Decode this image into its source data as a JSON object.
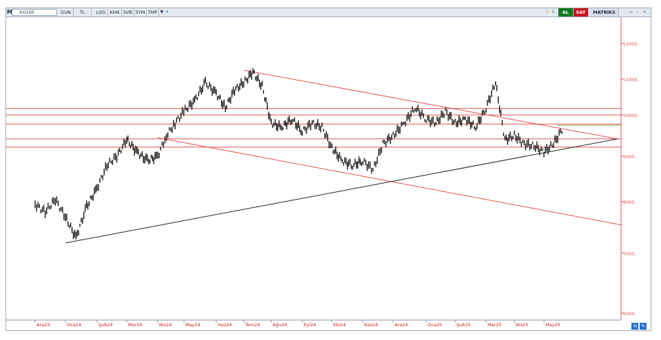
{
  "toolbar": {
    "menu_letter": "M",
    "symbol": "XU100",
    "buttons": [
      "GUN",
      "TL",
      "LOG",
      "KHN",
      "SVB",
      "SYM",
      "TMP"
    ],
    "right_icons": [
      "lightning-icon",
      "refresh-icon"
    ],
    "buy_label": "AL",
    "sell_label": "SAT",
    "matriks_label": "MATRİKS",
    "colors": {
      "buy": "#0d7a1f",
      "sell": "#c8161c",
      "matriks": "#d7dde6"
    }
  },
  "chart_data": {
    "type": "candlestick",
    "instrument": "XU100",
    "period": "daily",
    "x_ticks": [
      "Ara23",
      "Oca24",
      "Şub24",
      "Mar24",
      "Nis24",
      "May24",
      "Haz24",
      "Tem24",
      "Ağu24",
      "Eyl24",
      "Eki24",
      "Kas24",
      "Ara24",
      "Oca25",
      "Şub25",
      "Mar25",
      "Nis25",
      "May25"
    ],
    "y_ticks": [
      12000,
      11000,
      10000,
      9000,
      8000,
      7000,
      6000
    ],
    "y_tick_labels": [
      "12000.",
      "11000.",
      "10000.",
      "9000.",
      "8000.",
      "7000.",
      "6000."
    ],
    "ylim": [
      5900,
      12800
    ],
    "series": [
      {
        "values": [
          {
            "date": "Ara23",
            "value": 7950
          },
          {
            "date": "Ara23",
            "value": 7800
          },
          {
            "date": "Ara23",
            "value": 8050
          },
          {
            "date": "Oca24",
            "value": 7700
          },
          {
            "date": "Oca24",
            "value": 7300
          },
          {
            "date": "Oca24",
            "value": 7900
          },
          {
            "date": "Şub24",
            "value": 8300
          },
          {
            "date": "Şub24",
            "value": 8800
          },
          {
            "date": "Şub24",
            "value": 9000
          },
          {
            "date": "Mar24",
            "value": 9400
          },
          {
            "date": "Mar24",
            "value": 9100
          },
          {
            "date": "Mar24",
            "value": 8900
          },
          {
            "date": "Nis24",
            "value": 9000
          },
          {
            "date": "Nis24",
            "value": 9500
          },
          {
            "date": "Nis24",
            "value": 9800
          },
          {
            "date": "May24",
            "value": 10100
          },
          {
            "date": "May24",
            "value": 10400
          },
          {
            "date": "May24",
            "value": 10900
          },
          {
            "date": "Haz24",
            "value": 10600
          },
          {
            "date": "Haz24",
            "value": 10200
          },
          {
            "date": "Haz24",
            "value": 10700
          },
          {
            "date": "Tem24",
            "value": 10900
          },
          {
            "date": "Tem24",
            "value": 11200
          },
          {
            "date": "Tem24",
            "value": 10800
          },
          {
            "date": "Ağu24",
            "value": 9800
          },
          {
            "date": "Ağu24",
            "value": 9700
          },
          {
            "date": "Ağu24",
            "value": 9900
          },
          {
            "date": "Eyl24",
            "value": 9600
          },
          {
            "date": "Eyl24",
            "value": 9800
          },
          {
            "date": "Eyl24",
            "value": 9700
          },
          {
            "date": "Eki24",
            "value": 9200
          },
          {
            "date": "Eki24",
            "value": 8900
          },
          {
            "date": "Eki24",
            "value": 8800
          },
          {
            "date": "Kas24",
            "value": 8900
          },
          {
            "date": "Kas24",
            "value": 8700
          },
          {
            "date": "Kas24",
            "value": 9300
          },
          {
            "date": "Ara24",
            "value": 9500
          },
          {
            "date": "Ara24",
            "value": 9800
          },
          {
            "date": "Ara24",
            "value": 10200
          },
          {
            "date": "Oca25",
            "value": 9900
          },
          {
            "date": "Oca25",
            "value": 9800
          },
          {
            "date": "Oca25",
            "value": 10100
          },
          {
            "date": "Şub25",
            "value": 9800
          },
          {
            "date": "Şub25",
            "value": 9900
          },
          {
            "date": "Şub25",
            "value": 9700
          },
          {
            "date": "Mar25",
            "value": 10200
          },
          {
            "date": "Mar25",
            "value": 10900
          },
          {
            "date": "Mar25",
            "value": 9400
          },
          {
            "date": "Nis25",
            "value": 9500
          },
          {
            "date": "Nis25",
            "value": 9300
          },
          {
            "date": "Nis25",
            "value": 9250
          },
          {
            "date": "May25",
            "value": 9100
          },
          {
            "date": "May25",
            "value": 9300
          },
          {
            "date": "May25",
            "value": 9700
          }
        ]
      }
    ],
    "horizontal_levels": [
      10180,
      10000,
      9780,
      9420,
      9220
    ],
    "highlight_level": 9750,
    "trendlines": [
      {
        "color": "#e05050",
        "from": {
          "date": "Tem24",
          "value": 11250
        },
        "to": {
          "date": "May25+",
          "value": 9420
        }
      },
      {
        "color": "#e05050",
        "from": {
          "date": "Nis24",
          "value": 9450
        },
        "to": {
          "date": "May25++",
          "value": 7550
        }
      },
      {
        "color": "#222222",
        "from": {
          "date": "Oca24",
          "value": 7200
        },
        "to": {
          "date": "May25+",
          "value": 9420
        }
      }
    ],
    "grid": false,
    "colors": {
      "candle": "#000000",
      "level": "#e05050",
      "highlight": "#7ac143",
      "axis": "#e05050",
      "support": "#222222"
    }
  }
}
